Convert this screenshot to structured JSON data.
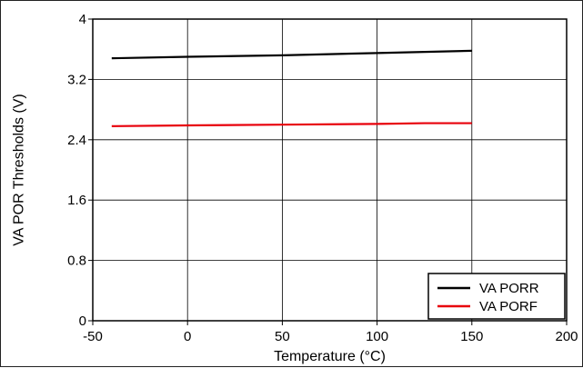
{
  "chart_data": {
    "type": "line",
    "title": "",
    "xlabel": "Temperature (°C)",
    "ylabel": "VA POR Thresholds (V)",
    "xlim": [
      -50,
      200
    ],
    "ylim": [
      0,
      4
    ],
    "xticks": [
      -50,
      0,
      50,
      100,
      150,
      200
    ],
    "yticks": [
      0,
      0.8,
      1.6,
      2.4,
      3.2,
      4
    ],
    "xtick_labels": [
      "-50",
      "0",
      "50",
      "100",
      "150",
      "200"
    ],
    "ytick_labels": [
      "0",
      "0.8",
      "1.6",
      "2.4",
      "3.2",
      "4"
    ],
    "grid": true,
    "legend_position": "bottom-right",
    "series": [
      {
        "name": "VA PORR",
        "color": "#000000",
        "x": [
          -40,
          0,
          50,
          100,
          150
        ],
        "y": [
          3.48,
          3.5,
          3.52,
          3.55,
          3.58
        ]
      },
      {
        "name": "VA PORF",
        "color": "#e8000b",
        "x": [
          -40,
          0,
          50,
          100,
          125,
          150
        ],
        "y": [
          2.58,
          2.59,
          2.6,
          2.61,
          2.62,
          2.62
        ]
      }
    ]
  }
}
